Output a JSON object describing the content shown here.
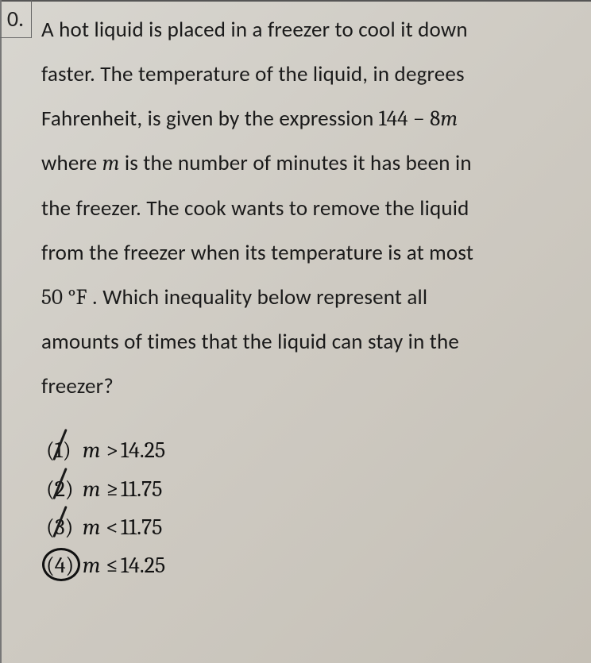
{
  "question_number": "0.",
  "question_text_parts": {
    "p1": "A hot liquid is placed in a freezer to cool it down",
    "p2": "faster. The temperature of the liquid, in degrees",
    "p3a": "Fahrenheit, is given by the expression ",
    "p3b": "144 − 8",
    "p3c": "m",
    "p4a": "where ",
    "p4b": "m",
    "p4c": " is the number of minutes it has been in",
    "p5": "the freezer. The cook wants to remove the liquid",
    "p6": "from the freezer when its temperature is at most",
    "p7a": "50 °F",
    "p7b": " . Which inequality below represent all",
    "p8": "amounts of times that the liquid can stay in the",
    "p9": "freezer?"
  },
  "options": [
    {
      "num": "(1)",
      "var": "m",
      "op": ">",
      "val": "14.25",
      "slashed": true,
      "circled": false
    },
    {
      "num": "(2)",
      "var": "m",
      "op": "≥",
      "val": "11.75",
      "slashed": true,
      "circled": false
    },
    {
      "num": "(3)",
      "var": "m",
      "op": "<",
      "val": "11.75",
      "slashed": true,
      "circled": false
    },
    {
      "num": "(4)",
      "var": "m",
      "op": "≤",
      "val": "14.25",
      "slashed": false,
      "circled": true
    }
  ],
  "styling": {
    "background_gradient": [
      "#d8d6d0",
      "#cecac2",
      "#c5c0b6"
    ],
    "text_color": "#1a1a1a",
    "border_color": "#666",
    "question_fontsize": 27,
    "option_fontsize": 28,
    "line_height": 2.08,
    "annotation_color": "#111"
  }
}
